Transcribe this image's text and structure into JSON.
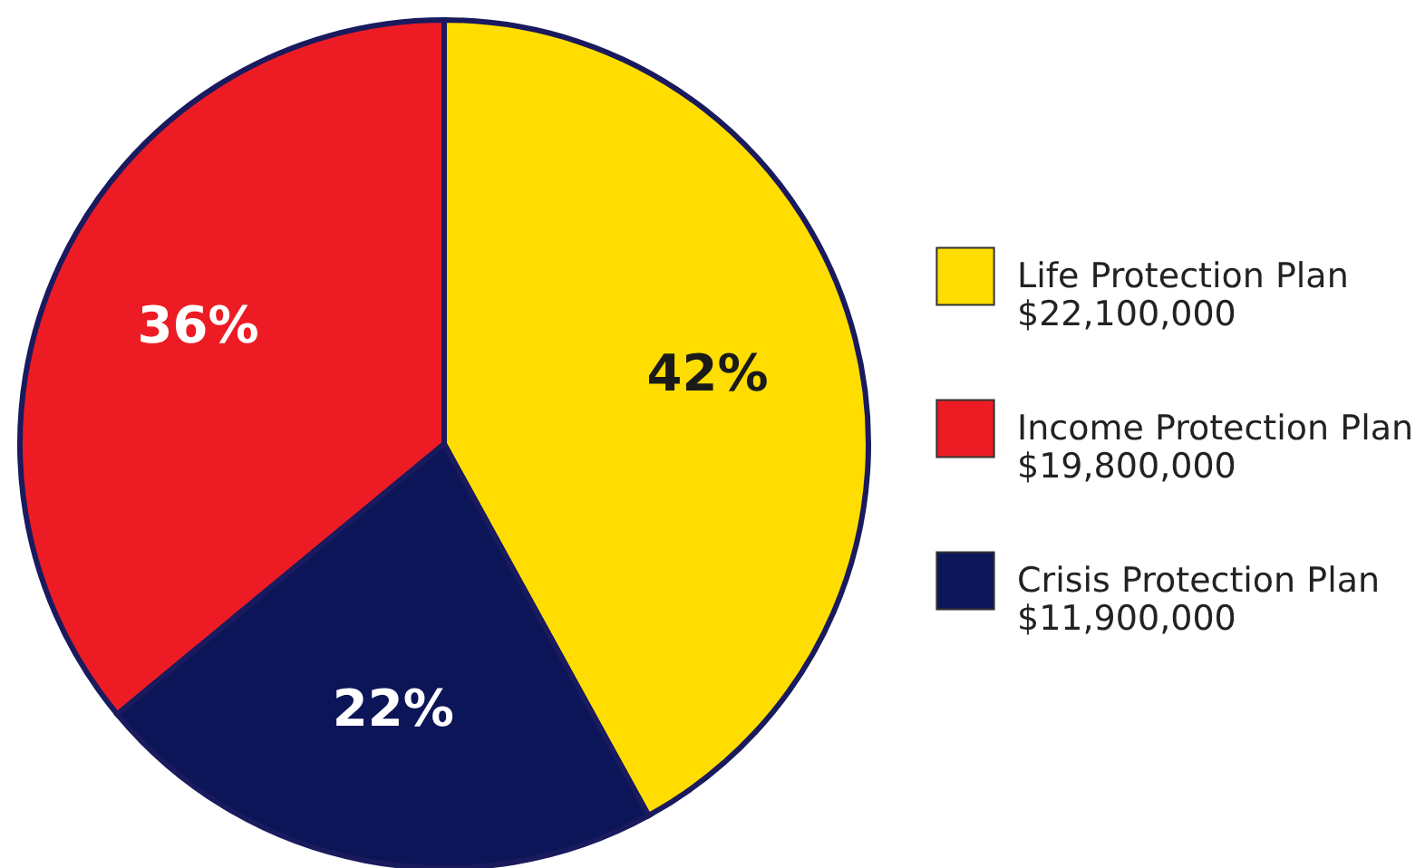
{
  "chart_data": {
    "type": "pie",
    "categories": [
      "Life Protection Plan\n$22,100,000",
      "Income Protection Plan\n$19,800,000",
      "Crisis Protection Plan\n$11,900,000"
    ],
    "values": [
      42,
      36,
      22
    ],
    "value_labels": [
      "42%",
      "36%",
      "22%"
    ],
    "colors": [
      "#ffdd00",
      "#ed1c24",
      "#0c1558"
    ],
    "legend": "right"
  }
}
